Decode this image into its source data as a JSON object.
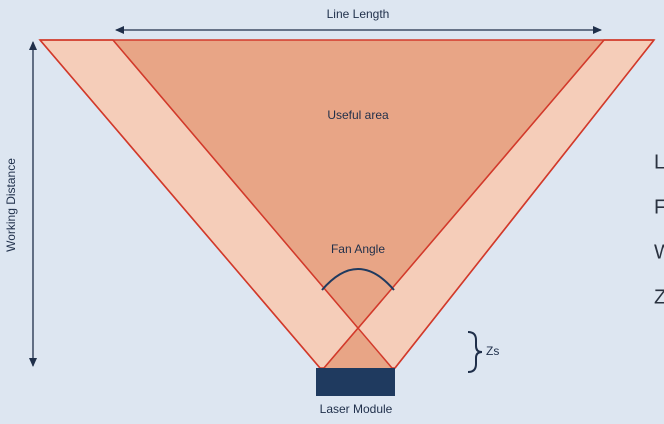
{
  "diagram": {
    "line_length": "Line Length",
    "useful_area": "Useful area",
    "fan_angle": "Fan Angle",
    "working_distance": "Working Distance",
    "zs": "Zs",
    "laser_module": "Laser Module",
    "side_text": [
      "L",
      "F",
      "W",
      "Z"
    ]
  }
}
